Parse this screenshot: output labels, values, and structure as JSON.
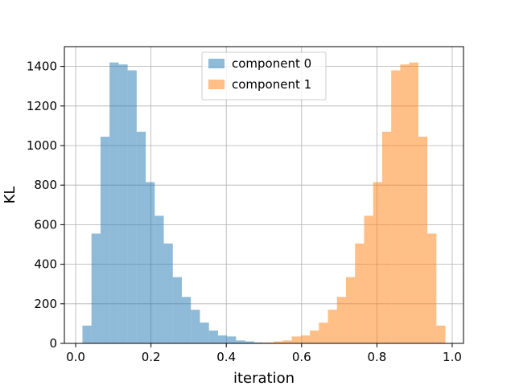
{
  "chart_data": {
    "type": "histogram",
    "title": "",
    "xlabel": "iteration",
    "ylabel": "KL",
    "xlim": [
      -0.03,
      1.03
    ],
    "ylim": [
      0,
      1500
    ],
    "xticks": [
      0.0,
      0.2,
      0.4,
      0.6,
      0.8,
      1.0
    ],
    "xtick_labels": [
      "0.0",
      "0.2",
      "0.4",
      "0.6",
      "0.8",
      "1.0"
    ],
    "yticks": [
      0,
      200,
      400,
      600,
      800,
      1000,
      1200,
      1400
    ],
    "ytick_labels": [
      "0",
      "200",
      "400",
      "600",
      "800",
      "1000",
      "1200",
      "1400"
    ],
    "grid": true,
    "legend_position": "top-center",
    "series": [
      {
        "name": "component 0",
        "color": "#1f77b4",
        "alpha": 0.5,
        "bin_edges": [
          0.018,
          0.042,
          0.066,
          0.09,
          0.114,
          0.138,
          0.162,
          0.186,
          0.21,
          0.234,
          0.258,
          0.282,
          0.306,
          0.33,
          0.354,
          0.378,
          0.402,
          0.426,
          0.45,
          0.474,
          0.498,
          0.522
        ],
        "counts": [
          90,
          555,
          1045,
          1420,
          1410,
          1380,
          1070,
          815,
          645,
          505,
          335,
          235,
          170,
          105,
          65,
          40,
          35,
          15,
          10,
          5,
          3
        ]
      },
      {
        "name": "component 1",
        "color": "#ff7f0e",
        "alpha": 0.5,
        "bin_edges": [
          0.478,
          0.502,
          0.526,
          0.55,
          0.574,
          0.598,
          0.622,
          0.646,
          0.67,
          0.694,
          0.718,
          0.742,
          0.766,
          0.79,
          0.814,
          0.838,
          0.862,
          0.886,
          0.91,
          0.934,
          0.958,
          0.982
        ],
        "counts": [
          3,
          5,
          10,
          15,
          35,
          40,
          65,
          105,
          170,
          235,
          335,
          505,
          645,
          815,
          1070,
          1380,
          1410,
          1420,
          1045,
          555,
          90
        ]
      }
    ]
  }
}
